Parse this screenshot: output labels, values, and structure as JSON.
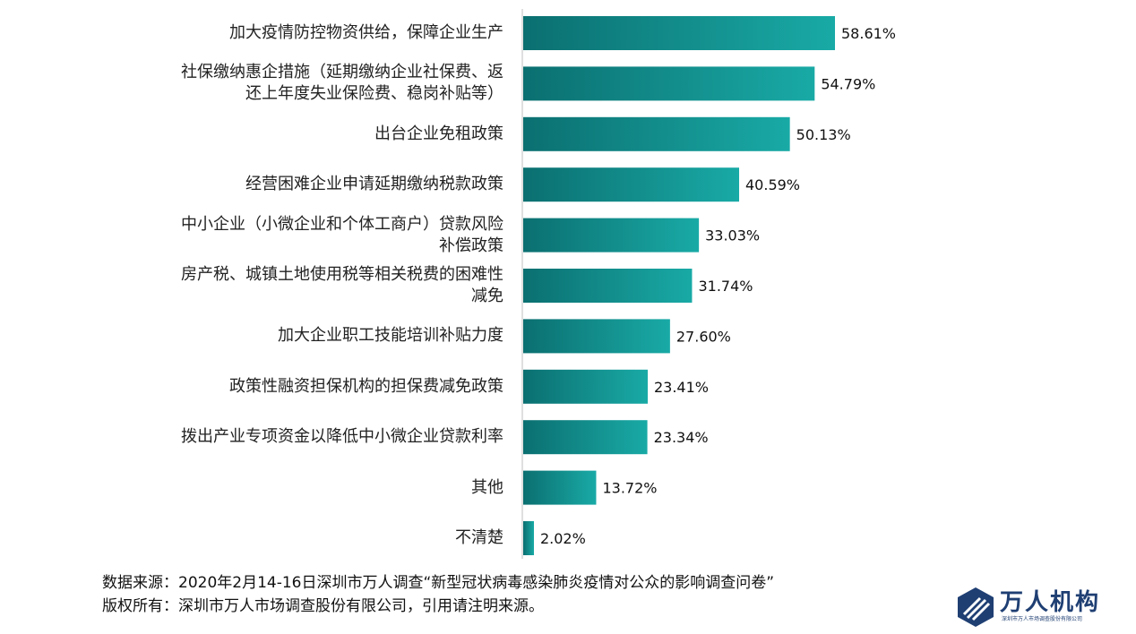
{
  "chart_data": {
    "type": "bar",
    "orientation": "horizontal",
    "categories": [
      "加大疫情防控物资供给，保障企业生产",
      "社保缴纳惠企措施（延期缴纳企业社保费、返\n还上年度失业保险费、稳岗补贴等）",
      "出台企业免租政策",
      "经营困难企业申请延期缴纳税款政策",
      "中小企业（小微企业和个体工商户）贷款风险\n补偿政策",
      "房产税、城镇土地使用税等相关税费的困难性\n减免",
      "加大企业职工技能培训补贴力度",
      "政策性融资担保机构的担保费减免政策",
      "拨出产业专项资金以降低中小微企业贷款利率",
      "其他",
      "不清楚"
    ],
    "values": [
      58.61,
      54.79,
      50.13,
      40.59,
      33.03,
      31.74,
      27.6,
      23.41,
      23.34,
      13.72,
      2.02
    ],
    "value_labels": [
      "58.61%",
      "54.79%",
      "50.13%",
      "40.59%",
      "33.03%",
      "31.74%",
      "27.60%",
      "23.41%",
      "23.34%",
      "13.72%",
      "2.02%"
    ],
    "xlim": [
      0,
      100
    ],
    "grid": false,
    "legend": "none",
    "bar_color_start": "#0b6f70",
    "bar_color_end": "#19aaa6"
  },
  "footer": {
    "source": "数据来源：2020年2月14-16日深圳市万人调查“新型冠状病毒感染肺炎疫情对公众的影响调查问卷”",
    "copyright": "版权所有：深圳市万人市场调查股份有限公司，引用请注明来源。"
  },
  "logo": {
    "name": "万人机构",
    "sub": "深圳市万人市场调查股份有限公司"
  }
}
